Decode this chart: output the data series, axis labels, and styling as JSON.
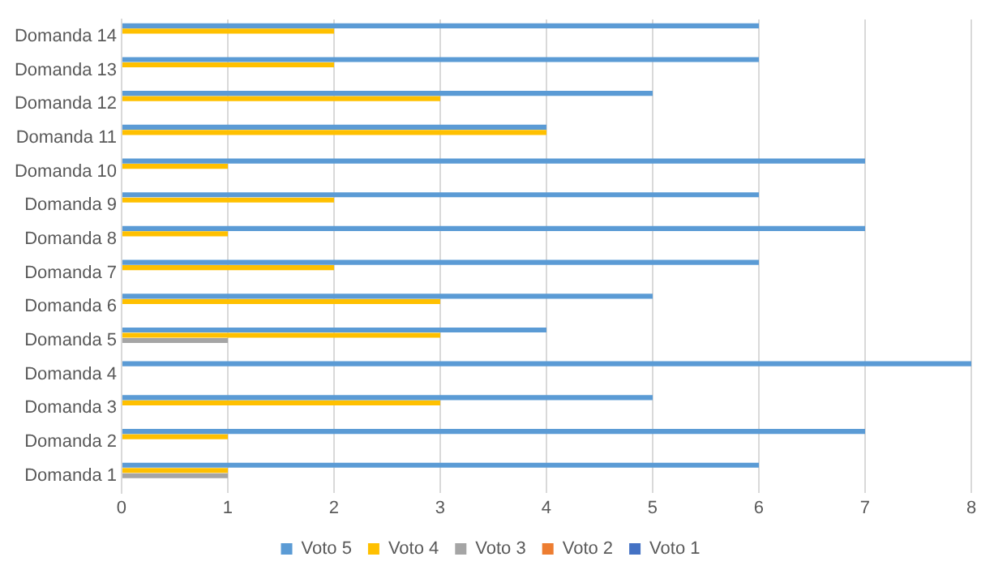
{
  "chart_data": {
    "type": "bar",
    "orientation": "horizontal",
    "categories": [
      "Domanda 14",
      "Domanda 13",
      "Domanda 12",
      "Domanda 11",
      "Domanda 10",
      "Domanda 9",
      "Domanda 8",
      "Domanda 7",
      "Domanda 6",
      "Domanda 5",
      "Domanda 4",
      "Domanda 3",
      "Domanda 2",
      "Domanda 1"
    ],
    "series": [
      {
        "name": "Voto 5",
        "color": "#5b9bd5",
        "values": [
          6,
          6,
          5,
          4,
          7,
          6,
          7,
          6,
          5,
          4,
          8,
          5,
          7,
          6
        ]
      },
      {
        "name": "Voto 4",
        "color": "#ffc000",
        "values": [
          2,
          2,
          3,
          4,
          1,
          2,
          1,
          2,
          3,
          3,
          0,
          3,
          1,
          1
        ]
      },
      {
        "name": "Voto 3",
        "color": "#a5a5a5",
        "values": [
          0,
          0,
          0,
          0,
          0,
          0,
          0,
          0,
          0,
          1,
          0,
          0,
          0,
          1
        ]
      },
      {
        "name": "Voto 2",
        "color": "#ed7d31",
        "values": [
          0,
          0,
          0,
          0,
          0,
          0,
          0,
          0,
          0,
          0,
          0,
          0,
          0,
          0
        ]
      },
      {
        "name": "Voto 1",
        "color": "#4472c4",
        "values": [
          0,
          0,
          0,
          0,
          0,
          0,
          0,
          0,
          0,
          0,
          0,
          0,
          0,
          0
        ]
      }
    ],
    "xlim": [
      0,
      8
    ],
    "xticks": [
      0,
      1,
      2,
      3,
      4,
      5,
      6,
      7,
      8
    ],
    "grid": "x",
    "legend": "bottom"
  }
}
